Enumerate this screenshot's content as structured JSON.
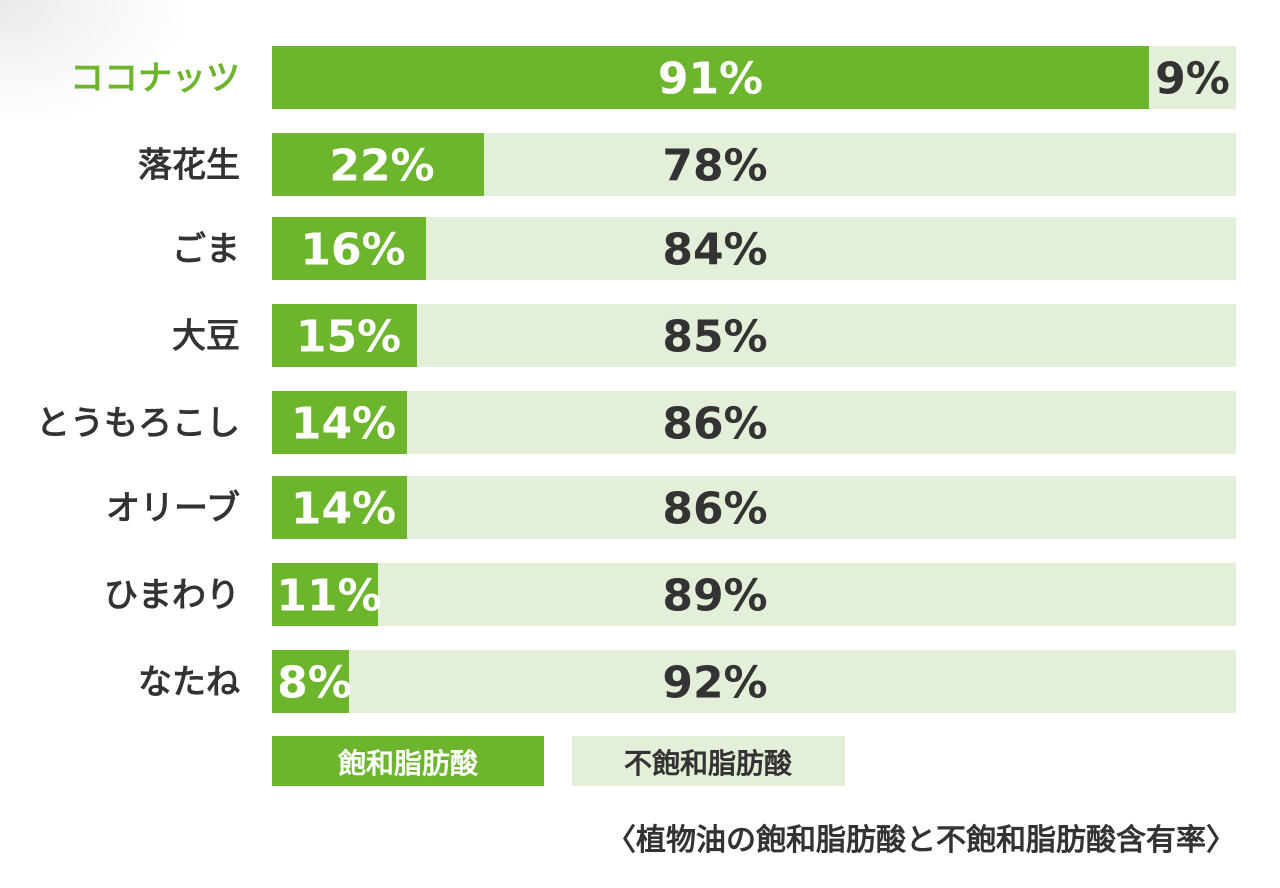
{
  "colors": {
    "saturated": "#6cb52d",
    "unsaturated": "#e4efd9",
    "highlight_label": "#6cb52d",
    "label_text": "#333333",
    "value_on_dark": "#ffffff",
    "value_on_light": "#333333"
  },
  "chart_data": {
    "type": "bar",
    "orientation": "horizontal",
    "stacked": true,
    "percent_suffix": "%",
    "categories": [
      "ココナッツ",
      "落花生",
      "ごま",
      "大豆",
      "とうもろこし",
      "オリーブ",
      "ひまわり",
      "なたね"
    ],
    "highlight_category": "ココナッツ",
    "series": [
      {
        "name": "飽和脂肪酸",
        "values": [
          91,
          22,
          16,
          15,
          14,
          14,
          11,
          8
        ]
      },
      {
        "name": "不飽和脂肪酸",
        "values": [
          9,
          78,
          84,
          85,
          86,
          86,
          89,
          92
        ]
      }
    ],
    "xlim": [
      0,
      100
    ],
    "grid": false,
    "legend_position": "bottom-left",
    "caption": "〈植物油の飽和脂肪酸と不飽和脂肪酸含有率〉"
  }
}
